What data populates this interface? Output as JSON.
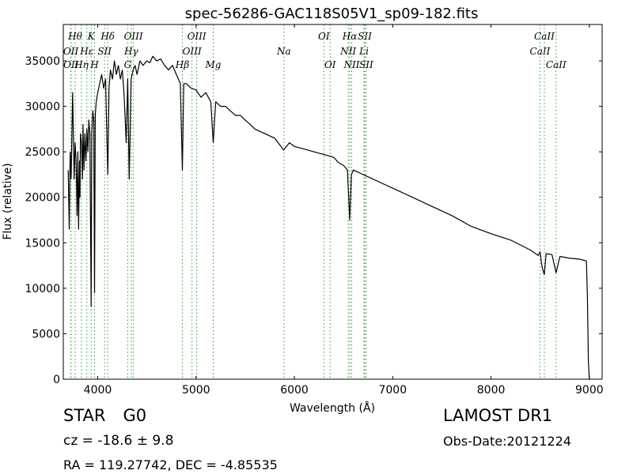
{
  "chart_data": {
    "type": "line",
    "title": "spec-56286-GAC118S05V1_sp09-182.fits",
    "xlabel": "Wavelength (Å)",
    "ylabel": "Flux (relative)",
    "xlim": [
      3650,
      9130
    ],
    "ylim": [
      0,
      39000
    ],
    "xticks": [
      4000,
      5000,
      6000,
      7000,
      8000,
      9000
    ],
    "yticks": [
      0,
      5000,
      10000,
      15000,
      20000,
      25000,
      30000,
      35000
    ],
    "grid": false,
    "line_color": "#000000",
    "marker_color": "#2ca02c",
    "series": [
      {
        "x": [
          3700,
          3710,
          3720,
          3730,
          3745,
          3760,
          3770,
          3780,
          3790,
          3798,
          3805,
          3815,
          3820,
          3825,
          3835,
          3845,
          3850,
          3860,
          3870,
          3880,
          3890,
          3900,
          3910,
          3920,
          3933,
          3940,
          3950,
          3960,
          3968,
          3975,
          3985,
          4000,
          4020,
          4040,
          4060,
          4080,
          4102,
          4115,
          4130,
          4150,
          4170,
          4190,
          4210,
          4230,
          4250,
          4270,
          4290,
          4305,
          4320,
          4340,
          4360,
          4380,
          4400,
          4430,
          4460,
          4500,
          4530,
          4560,
          4600,
          4640,
          4680,
          4720,
          4760,
          4800,
          4840,
          4861,
          4875,
          4900,
          4950,
          5000,
          5050,
          5100,
          5150,
          5175,
          5200,
          5250,
          5300,
          5350,
          5400,
          5450,
          5500,
          5550,
          5600,
          5700,
          5800,
          5890,
          5950,
          6000,
          6100,
          6200,
          6300,
          6400,
          6450,
          6500,
          6540,
          6563,
          6580,
          6600,
          6700,
          6800,
          6900,
          7000,
          7200,
          7400,
          7600,
          7800,
          8000,
          8200,
          8400,
          8480,
          8498,
          8520,
          8542,
          8560,
          8620,
          8662,
          8700,
          8800,
          8900,
          8970,
          8980,
          8990,
          9000,
          9010
        ],
        "y": [
          23000,
          16500,
          25000,
          22000,
          31500,
          22000,
          26000,
          24000,
          18000,
          25000,
          16500,
          24000,
          20000,
          27000,
          26000,
          22000,
          28000,
          23000,
          27000,
          24000,
          27500,
          25000,
          28500,
          27000,
          8000,
          27000,
          29500,
          28500,
          9500,
          29000,
          30500,
          31500,
          32500,
          33500,
          32000,
          33000,
          22500,
          32000,
          34000,
          33000,
          35000,
          33500,
          34500,
          33000,
          34000,
          31000,
          26000,
          33000,
          22000,
          33000,
          34000,
          34500,
          33500,
          35000,
          34500,
          35000,
          34800,
          35500,
          35000,
          35200,
          34500,
          34000,
          34500,
          33500,
          32500,
          23000,
          32500,
          32500,
          32000,
          31800,
          31000,
          31500,
          30500,
          26000,
          30500,
          30000,
          30000,
          29500,
          29000,
          29000,
          28500,
          28000,
          27500,
          27000,
          26500,
          25200,
          26000,
          25600,
          25300,
          25000,
          24700,
          24400,
          23800,
          23500,
          23000,
          17500,
          22500,
          23000,
          22500,
          22000,
          21500,
          21000,
          20000,
          19000,
          18000,
          16800,
          16000,
          15300,
          14200,
          13600,
          14000,
          12300,
          11500,
          13800,
          13700,
          11700,
          13500,
          13300,
          13200,
          13000,
          9000,
          2000,
          0,
          0
        ]
      }
    ],
    "lines": [
      {
        "label": "OII",
        "wl": 3727,
        "row": 2
      },
      {
        "label": "OII",
        "wl": 3729,
        "row": 3
      },
      {
        "label": "Hθ",
        "wl": 3771,
        "row": 1
      },
      {
        "label": "Hη",
        "wl": 3835,
        "row": 3
      },
      {
        "label": "Hε",
        "wl": 3889,
        "row": 2
      },
      {
        "label": "K",
        "wl": 3934,
        "row": 1
      },
      {
        "label": "H",
        "wl": 3968,
        "row": 3
      },
      {
        "label": "SII",
        "wl": 4070,
        "row": 2
      },
      {
        "label": "Hδ",
        "wl": 4102,
        "row": 1
      },
      {
        "label": "G",
        "wl": 4305,
        "row": 3
      },
      {
        "label": "Hγ",
        "wl": 4341,
        "row": 2
      },
      {
        "label": "OIII",
        "wl": 4363,
        "row": 1
      },
      {
        "label": "Hβ",
        "wl": 4861,
        "row": 3
      },
      {
        "label": "OIII",
        "wl": 4959,
        "row": 2
      },
      {
        "label": "OIII",
        "wl": 5007,
        "row": 1
      },
      {
        "label": "Mg",
        "wl": 5175,
        "row": 3
      },
      {
        "label": "Na",
        "wl": 5894,
        "row": 2
      },
      {
        "label": "OI",
        "wl": 6300,
        "row": 1
      },
      {
        "label": "OI",
        "wl": 6364,
        "row": 3
      },
      {
        "label": "NII",
        "wl": 6548,
        "row": 2
      },
      {
        "label": "Hα",
        "wl": 6563,
        "row": 1
      },
      {
        "label": "NII",
        "wl": 6583,
        "row": 3
      },
      {
        "label": "Li",
        "wl": 6708,
        "row": 2
      },
      {
        "label": "SII",
        "wl": 6716,
        "row": 1
      },
      {
        "label": "SII",
        "wl": 6731,
        "row": 3
      },
      {
        "label": "CaII",
        "wl": 8498,
        "row": 2
      },
      {
        "label": "CaII",
        "wl": 8542,
        "row": 1
      },
      {
        "label": "CaII",
        "wl": 8662,
        "row": 3
      }
    ]
  },
  "info": {
    "class": "STAR",
    "subclass": "G0",
    "survey": "LAMOST DR1",
    "cz": "cz = -18.6 ± 9.8",
    "obs_date": "Obs-Date:20121224",
    "radec": "RA = 119.27742, DEC = -4.85535"
  }
}
